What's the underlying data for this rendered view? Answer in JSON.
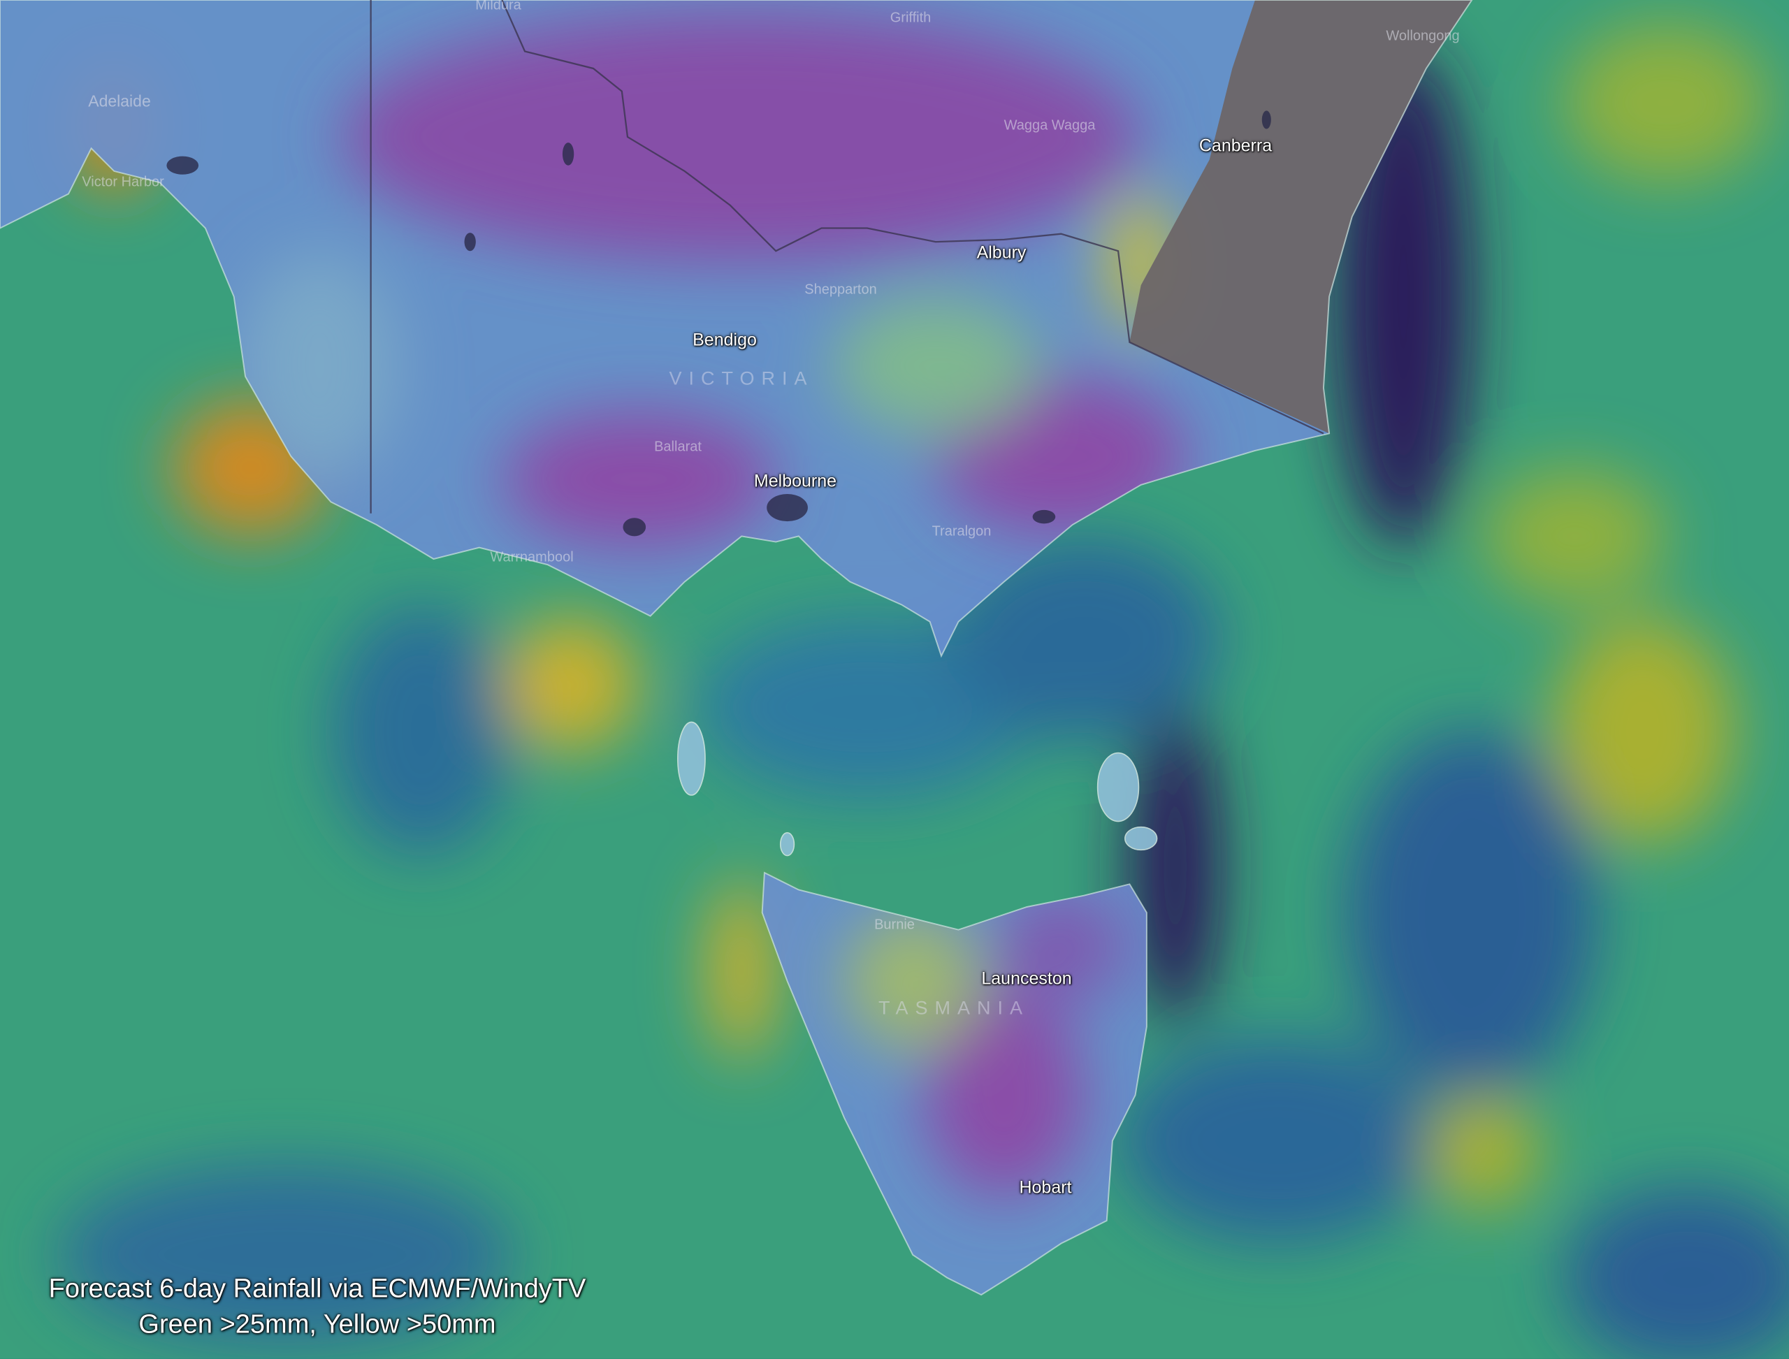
{
  "places": {
    "mildura": "Mildura",
    "griffith": "Griffith",
    "wollongong": "Wollongong",
    "adelaide": "Adelaide",
    "victor_harbor": "Victor Harbor",
    "wagga_wagga": "Wagga Wagga",
    "canberra": "Canberra",
    "albury": "Albury",
    "shepparton": "Shepparton",
    "bendigo": "Bendigo",
    "ballarat": "Ballarat",
    "melbourne": "Melbourne",
    "traralgon": "Traralgon",
    "warrnambool": "Warrnambool",
    "burnie": "Burnie",
    "launceston": "Launceston",
    "hobart": "Hobart"
  },
  "regions": {
    "victoria": "VICTORIA",
    "tasmania": "TASMANIA"
  },
  "caption": {
    "line1": "Forecast 6-day Rainfall via ECMWF/WindyTV",
    "line2": "Green >25mm, Yellow >50mm"
  }
}
